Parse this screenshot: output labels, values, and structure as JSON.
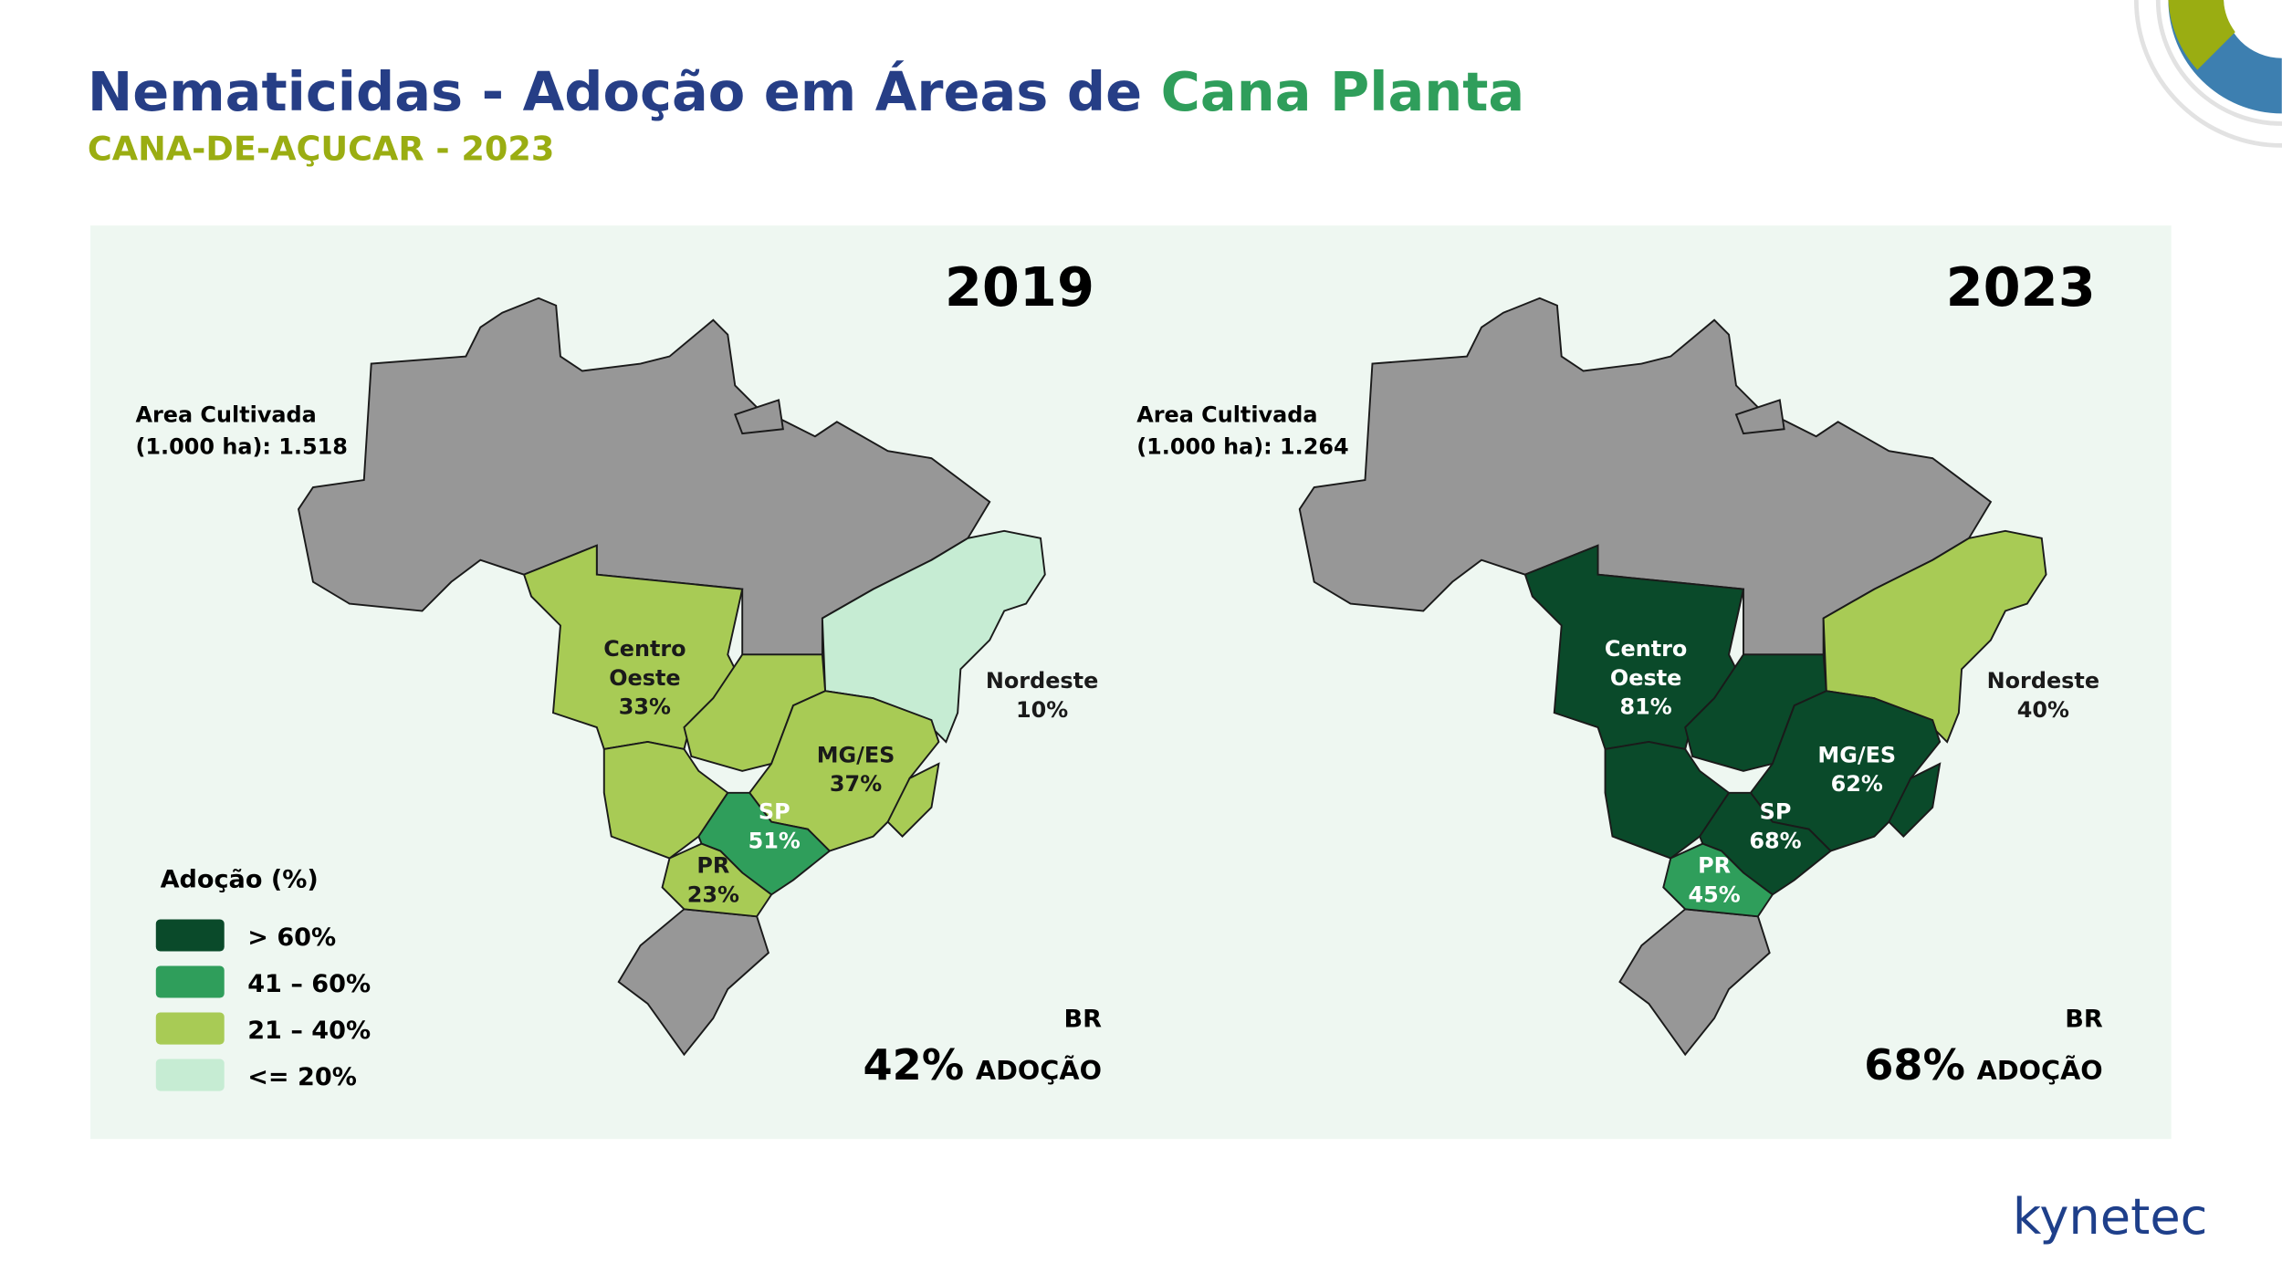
{
  "header": {
    "title_main": "Nematicidas - Adoção em Áreas de ",
    "title_accent": "Cana Planta",
    "subtitle": "CANA-DE-AÇUCAR - 2023"
  },
  "maps": [
    {
      "year": "2019",
      "area_label": "Area Cultivada",
      "area_value": "(1.000 ha): 1.518",
      "regions": [
        {
          "name": [
            "Centro",
            "Oeste"
          ],
          "value": "33%",
          "color": "#a8cb55"
        },
        {
          "name": [
            "Nordeste"
          ],
          "value": "10%",
          "color": "#c6ecd3"
        },
        {
          "name": [
            "MG/ES"
          ],
          "value": "37%",
          "color": "#a8cb55"
        },
        {
          "name": [
            "SP"
          ],
          "value": "51%",
          "color": "#2f9e5b"
        },
        {
          "name": [
            "PR"
          ],
          "value": "23%",
          "color": "#a8cb55"
        }
      ],
      "br_label": "BR",
      "br_value": "42%",
      "br_suffix": "ADOÇÃO"
    },
    {
      "year": "2023",
      "area_label": "Area Cultivada",
      "area_value": "(1.000 ha): 1.264",
      "regions": [
        {
          "name": [
            "Centro",
            "Oeste"
          ],
          "value": "81%",
          "color": "#0a4a2a"
        },
        {
          "name": [
            "Nordeste"
          ],
          "value": "40%",
          "color": "#a8cb55"
        },
        {
          "name": [
            "MG/ES"
          ],
          "value": "62%",
          "color": "#0a4a2a"
        },
        {
          "name": [
            "SP"
          ],
          "value": "68%",
          "color": "#0a4a2a"
        },
        {
          "name": [
            "PR"
          ],
          "value": "45%",
          "color": "#2f9e5b"
        }
      ],
      "br_label": "BR",
      "br_value": "68%",
      "br_suffix": "ADOÇÃO"
    }
  ],
  "legend": {
    "title": "Adoção (%)",
    "items": [
      {
        "label": "> 60%",
        "color": "#0a4a2a"
      },
      {
        "label": "41 – 60%",
        "color": "#2f9e5b"
      },
      {
        "label": "21 – 40%",
        "color": "#a8cb55"
      },
      {
        "label": "<= 20%",
        "color": "#c6ecd3"
      }
    ]
  },
  "logo": "kynetec"
}
